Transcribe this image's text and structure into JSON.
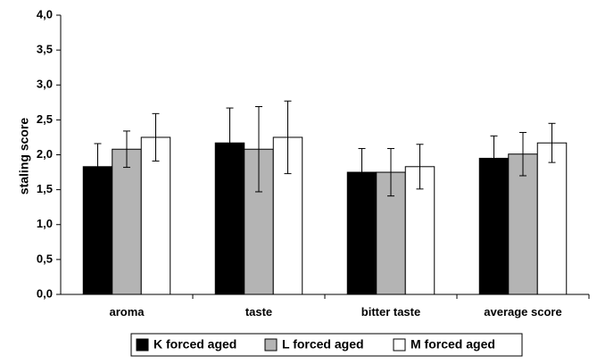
{
  "chart_data": {
    "type": "bar",
    "title": "",
    "xlabel": "",
    "ylabel": "staling score",
    "ylim": [
      0,
      4
    ],
    "yticks": [
      "0,0",
      "0,5",
      "1,0",
      "1,5",
      "2,0",
      "2,5",
      "3,0",
      "3,5",
      "4,0"
    ],
    "categories": [
      "aroma",
      "taste",
      "bitter taste",
      "average score"
    ],
    "grid": false,
    "legend_position": "bottom",
    "series": [
      {
        "name": "K forced aged",
        "color": "#000000",
        "values": [
          1.83,
          2.17,
          1.75,
          1.95
        ],
        "error": [
          0.33,
          0.5,
          0.34,
          0.32
        ]
      },
      {
        "name": "L forced aged",
        "color": "#b4b4b4",
        "values": [
          2.08,
          2.08,
          1.75,
          2.01
        ],
        "error": [
          0.26,
          0.61,
          0.34,
          0.31
        ]
      },
      {
        "name": "M forced aged",
        "color": "#ffffff",
        "values": [
          2.25,
          2.25,
          1.83,
          2.17
        ],
        "error": [
          0.34,
          0.52,
          0.32,
          0.28
        ]
      }
    ]
  }
}
